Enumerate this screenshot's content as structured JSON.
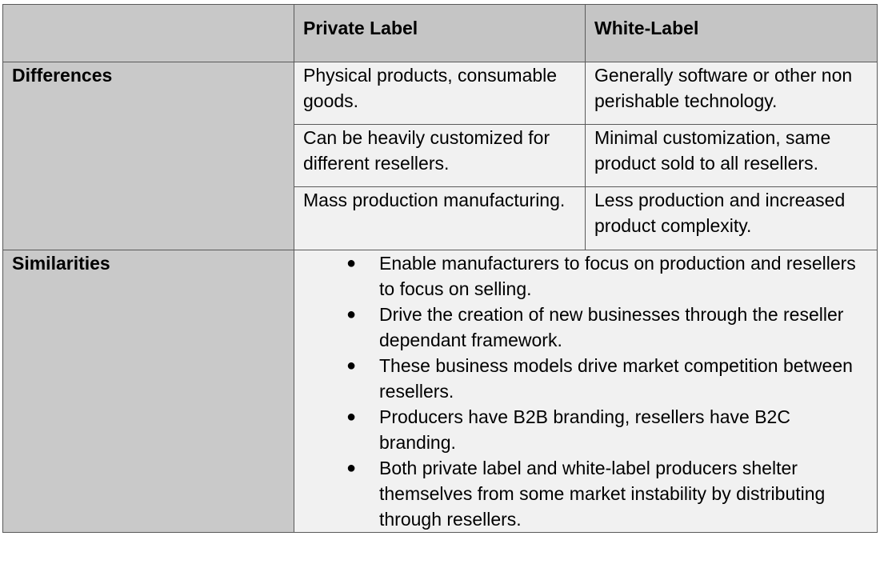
{
  "table": {
    "header": {
      "corner": "",
      "col_private": "Private Label",
      "col_white": "White-Label"
    },
    "differences": {
      "label": "Differences",
      "rows": [
        {
          "private": "Physical products, consumable goods.",
          "white": "Generally software or other non perishable technology."
        },
        {
          "private": "Can be heavily customized for different resellers.",
          "white": "Minimal customization, same product sold to all resellers."
        },
        {
          "private": "Mass production manufacturing.",
          "white": "Less production and increased product complexity."
        }
      ]
    },
    "similarities": {
      "label": "Similarities",
      "bullet_glyph": "●",
      "items": [
        "Enable manufacturers to focus on production and resellers to focus on selling.",
        "Drive the creation of new businesses through the reseller dependant framework.",
        "These business models drive market competition between resellers.",
        "Producers have B2B branding, resellers have B2C branding.",
        "Both private label and white-label producers shelter themselves from some market instability by distributing through resellers."
      ]
    }
  },
  "colors": {
    "header_bg": "#c5c5c5",
    "label_bg": "#c9c9c9",
    "cell_bg": "#f1f1f1",
    "border": "#5a5a5a"
  }
}
